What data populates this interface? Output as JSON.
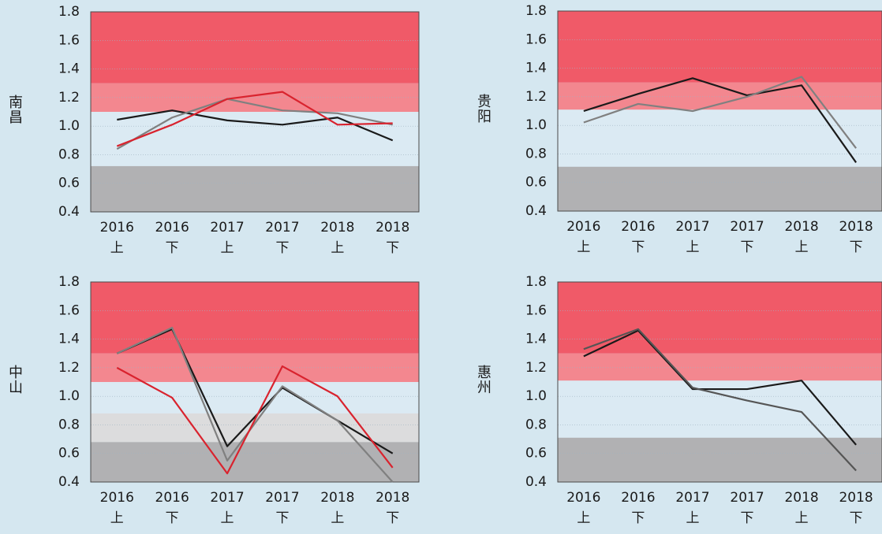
{
  "chart_data": [
    {
      "type": "line",
      "title": "南昌",
      "categories": [
        [
          "2016",
          "上"
        ],
        [
          "2016",
          "下"
        ],
        [
          "2017",
          "上"
        ],
        [
          "2017",
          "下"
        ],
        [
          "2018",
          "上"
        ],
        [
          "2018",
          "下"
        ]
      ],
      "ylim": [
        0.4,
        1.8
      ],
      "yticks": [
        0.4,
        0.6,
        0.8,
        {
          "value": 1,
          "label": "1.0"
        },
        1.2,
        1.4,
        1.6,
        1.8
      ],
      "grid": true,
      "bands": [
        {
          "from": 0.4,
          "to": 0.72,
          "color": "#b1b1b3"
        },
        {
          "from": 1.1,
          "to": 1.3,
          "color": "#f3878f"
        },
        {
          "from": 1.3,
          "to": 1.8,
          "color": "#f05a68"
        }
      ],
      "series": [
        {
          "color": "#1a1a1a",
          "values": [
            1.045,
            1.11,
            1.04,
            1.01,
            1.06,
            0.9
          ]
        },
        {
          "color": "#808080",
          "values": [
            0.84,
            1.06,
            1.19,
            1.11,
            1.09,
            1.01
          ]
        },
        {
          "color": "#d9232e",
          "values": [
            0.86,
            1.01,
            1.19,
            1.24,
            1.01,
            1.02
          ]
        }
      ]
    },
    {
      "type": "line",
      "title": "贵阳",
      "categories": [
        [
          "2016",
          "上"
        ],
        [
          "2016",
          "下"
        ],
        [
          "2017",
          "上"
        ],
        [
          "2017",
          "下"
        ],
        [
          "2018",
          "上"
        ],
        [
          "2018",
          "下"
        ]
      ],
      "ylim": [
        0.4,
        1.8
      ],
      "yticks": [
        0.4,
        0.6,
        0.8,
        {
          "value": 1,
          "label": "1.0"
        },
        1.2,
        1.4,
        1.6,
        1.8
      ],
      "grid": true,
      "bands": [
        {
          "from": 0.4,
          "to": 0.71,
          "color": "#b1b1b3"
        },
        {
          "from": 1.11,
          "to": 1.3,
          "color": "#f3878f"
        },
        {
          "from": 1.3,
          "to": 1.8,
          "color": "#f05a68"
        }
      ],
      "series": [
        {
          "color": "#1a1a1a",
          "values": [
            1.1,
            1.22,
            1.33,
            1.21,
            1.28,
            0.74
          ]
        },
        {
          "color": "#808080",
          "values": [
            1.02,
            1.15,
            1.1,
            1.2,
            1.34,
            0.84
          ]
        }
      ]
    },
    {
      "type": "line",
      "title": "中山",
      "categories": [
        [
          "2016",
          "上"
        ],
        [
          "2016",
          "下"
        ],
        [
          "2017",
          "上"
        ],
        [
          "2017",
          "下"
        ],
        [
          "2018",
          "上"
        ],
        [
          "2018",
          "下"
        ]
      ],
      "ylim": [
        0.4,
        1.8
      ],
      "yticks": [
        0.4,
        0.6,
        0.8,
        {
          "value": 1,
          "label": "1.0"
        },
        1.2,
        1.4,
        1.6,
        1.8
      ],
      "grid": true,
      "bands": [
        {
          "from": 0.4,
          "to": 0.68,
          "color": "#b1b1b3"
        },
        {
          "from": 0.68,
          "to": 0.88,
          "color": "#dcdcdd"
        },
        {
          "from": 1.1,
          "to": 1.3,
          "color": "#f3878f"
        },
        {
          "from": 1.3,
          "to": 1.8,
          "color": "#f05a68"
        }
      ],
      "series": [
        {
          "color": "#1a1a1a",
          "values": [
            1.3,
            1.47,
            0.65,
            1.06,
            0.83,
            0.6
          ]
        },
        {
          "color": "#808080",
          "values": [
            1.3,
            1.48,
            0.55,
            1.07,
            0.83,
            0.4
          ]
        },
        {
          "color": "#d9232e",
          "values": [
            1.2,
            0.99,
            0.46,
            1.21,
            1.0,
            0.5
          ]
        }
      ]
    },
    {
      "type": "line",
      "title": "惠州",
      "categories": [
        [
          "2016",
          "上"
        ],
        [
          "2016",
          "下"
        ],
        [
          "2017",
          "上"
        ],
        [
          "2017",
          "下"
        ],
        [
          "2018",
          "上"
        ],
        [
          "2018",
          "下"
        ]
      ],
      "ylim": [
        0.4,
        1.8
      ],
      "yticks": [
        0.4,
        0.6,
        0.8,
        {
          "value": 1,
          "label": "1.0"
        },
        1.2,
        1.4,
        1.6,
        1.8
      ],
      "grid": true,
      "bands": [
        {
          "from": 0.4,
          "to": 0.71,
          "color": "#b1b1b3"
        },
        {
          "from": 1.11,
          "to": 1.3,
          "color": "#f3878f"
        },
        {
          "from": 1.3,
          "to": 1.8,
          "color": "#f05a68"
        }
      ],
      "series": [
        {
          "color": "#1a1a1a",
          "values": [
            1.28,
            1.46,
            1.05,
            1.05,
            1.11,
            0.66
          ]
        },
        {
          "color": "#555555",
          "values": [
            1.33,
            1.47,
            1.06,
            0.97,
            0.89,
            0.48
          ]
        }
      ]
    }
  ]
}
